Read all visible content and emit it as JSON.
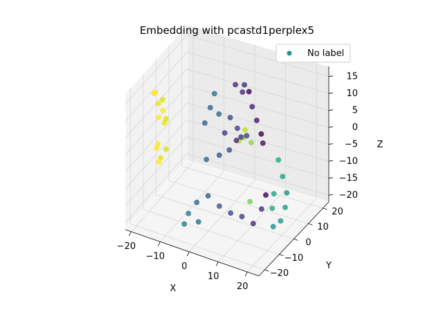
{
  "chart_data": {
    "type": "scatter",
    "projection": "3d",
    "title": "Embedding with pcastd1perplex5",
    "xlabel": "X",
    "ylabel": "Y",
    "zlabel": "Z",
    "xlim": [
      -22,
      24
    ],
    "ylim": [
      -24,
      24
    ],
    "zlim": [
      -22,
      18
    ],
    "xticks": [
      -20,
      -10,
      0,
      10,
      20
    ],
    "yticks": [
      -20,
      -10,
      0,
      10,
      20
    ],
    "zticks": [
      -20,
      -15,
      -10,
      -5,
      0,
      5,
      10,
      15
    ],
    "grid": true,
    "legend": {
      "location": "upper right",
      "entries": [
        "No label"
      ]
    },
    "colormap": "viridis",
    "series": [
      {
        "name": "No label",
        "legend_color": "#21918c",
        "points": [
          {
            "x": -21,
            "y": -4,
            "z": 10,
            "color": "#fde725"
          },
          {
            "x": -20,
            "y": -5,
            "z": 11,
            "color": "#fde725"
          },
          {
            "x": -19,
            "y": -5,
            "z": 8,
            "color": "#e8e419"
          },
          {
            "x": -18,
            "y": -4,
            "z": 9,
            "color": "#d8e219"
          },
          {
            "x": -22,
            "y": 2,
            "z": 0,
            "color": "#fde725"
          },
          {
            "x": -21,
            "y": 3,
            "z": 2,
            "color": "#fde725"
          },
          {
            "x": -20,
            "y": 2,
            "z": -1,
            "color": "#e8e419"
          },
          {
            "x": -19,
            "y": 1,
            "z": 1,
            "color": "#d8e219"
          },
          {
            "x": -20,
            "y": -3,
            "z": -5,
            "color": "#fde725"
          },
          {
            "x": -21,
            "y": -2,
            "z": -7,
            "color": "#fde725"
          },
          {
            "x": -20,
            "y": -1,
            "z": -10,
            "color": "#e8e419"
          },
          {
            "x": -21,
            "y": 0,
            "z": -12,
            "color": "#fde725"
          },
          {
            "x": -19,
            "y": 1,
            "z": -8,
            "color": "#d8e219"
          },
          {
            "x": 0,
            "y": 12,
            "z": 12,
            "color": "#472d7b"
          },
          {
            "x": 2,
            "y": 13,
            "z": 10,
            "color": "#482878"
          },
          {
            "x": 4,
            "y": 10,
            "z": 14,
            "color": "#46327e"
          },
          {
            "x": 6,
            "y": 9,
            "z": 13,
            "color": "#440154"
          },
          {
            "x": 8,
            "y": 7,
            "z": 10,
            "color": "#482475"
          },
          {
            "x": 10,
            "y": 6,
            "z": 7,
            "color": "#481769"
          },
          {
            "x": 12,
            "y": 5,
            "z": 4,
            "color": "#440154"
          },
          {
            "x": 13,
            "y": 4,
            "z": 2,
            "color": "#471063"
          },
          {
            "x": 0,
            "y": 8,
            "z": 4,
            "color": "#3e4989"
          },
          {
            "x": 2,
            "y": 9,
            "z": 1,
            "color": "#414487"
          },
          {
            "x": -1,
            "y": 6,
            "z": 0,
            "color": "#443a83"
          },
          {
            "x": -3,
            "y": 6,
            "z": 5,
            "color": "#31688e"
          },
          {
            "x": -5,
            "y": 7,
            "z": 10,
            "color": "#2c728e"
          },
          {
            "x": -6,
            "y": 6,
            "z": 6,
            "color": "#31688e"
          },
          {
            "x": -7,
            "y": 4,
            "z": 2,
            "color": "#355f8d"
          },
          {
            "x": -6,
            "y": 3,
            "z": -8,
            "color": "#31688e"
          },
          {
            "x": -2,
            "y": 4,
            "z": -6,
            "color": "#39568c"
          },
          {
            "x": 1,
            "y": 5,
            "z": -4,
            "color": "#3b528b"
          },
          {
            "x": 3,
            "y": 6,
            "z": -1,
            "color": "#482878"
          },
          {
            "x": 5,
            "y": 5,
            "z": 1,
            "color": "#433e85"
          },
          {
            "x": 7,
            "y": 5,
            "z": 2,
            "color": "#404688"
          },
          {
            "x": 3,
            "y": 8,
            "z": -2,
            "color": "#b5de2b"
          },
          {
            "x": 5,
            "y": 7,
            "z": 0,
            "color": "#a0da39"
          },
          {
            "x": 9,
            "y": 4,
            "z": 1,
            "color": "#8fd744"
          },
          {
            "x": 6,
            "y": 6,
            "z": 3,
            "color": "#c2df23"
          },
          {
            "x": 21,
            "y": -2,
            "z": 2,
            "color": "#22a884"
          },
          {
            "x": 22,
            "y": -1,
            "z": -3,
            "color": "#1fa188"
          },
          {
            "x": 23,
            "y": 0,
            "z": -8,
            "color": "#21918c"
          },
          {
            "x": 22,
            "y": 1,
            "z": -13,
            "color": "#1f9e89"
          },
          {
            "x": 19,
            "y": -1,
            "z": -9,
            "color": "#20a386"
          },
          {
            "x": 18,
            "y": 0,
            "z": -14,
            "color": "#25ab82"
          },
          {
            "x": 20,
            "y": 2,
            "z": -18,
            "color": "#1f988b"
          },
          {
            "x": 17,
            "y": 3,
            "z": -21,
            "color": "#21918c"
          },
          {
            "x": 13,
            "y": 3,
            "z": -17,
            "color": "#46327e"
          },
          {
            "x": 11,
            "y": 1,
            "z": -21,
            "color": "#482878"
          },
          {
            "x": 8,
            "y": -1,
            "z": -19,
            "color": "#443a83"
          },
          {
            "x": 5,
            "y": -3,
            "z": -18,
            "color": "#3e4989"
          },
          {
            "x": 2,
            "y": -5,
            "z": -16,
            "color": "#39568c"
          },
          {
            "x": -1,
            "y": -7,
            "z": -13,
            "color": "#355f8d"
          },
          {
            "x": -4,
            "y": -9,
            "z": -15,
            "color": "#31688e"
          },
          {
            "x": -6,
            "y": -11,
            "z": -18,
            "color": "#2a788e"
          },
          {
            "x": -7,
            "y": -12,
            "z": -21,
            "color": "#26828e"
          },
          {
            "x": -3,
            "y": -10,
            "z": -20,
            "color": "#2c728e"
          },
          {
            "x": 9,
            "y": 3,
            "z": -16,
            "color": "#7ad151"
          },
          {
            "x": 14,
            "y": 4,
            "z": -13,
            "color": "#440154"
          }
        ]
      }
    ]
  }
}
